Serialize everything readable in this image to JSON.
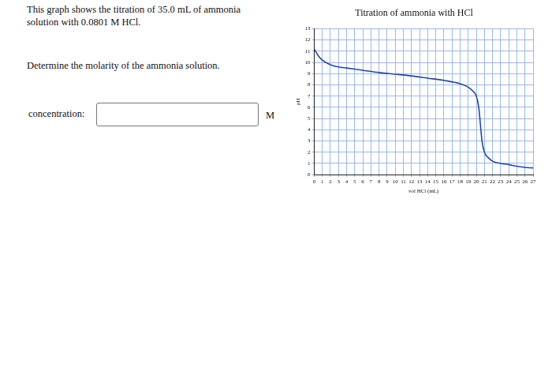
{
  "question": {
    "lines": [
      "This graph shows the titration of 35.0 mL of ammonia",
      "solution with 0.0801 M HCl."
    ],
    "prompt": "Determine the molarity of the ammonia solution.",
    "answer_label": "concentration:",
    "unit": "M"
  },
  "chart_data": {
    "type": "line",
    "title": "Titration of ammonia with HCl",
    "x_label": "vol HCl (mL)",
    "y_label": "pH",
    "x": [
      0,
      0.5,
      1,
      2,
      3,
      4,
      6,
      8,
      10,
      12,
      14,
      16,
      18,
      19,
      19.5,
      20,
      20.3,
      20.5,
      20.7,
      21,
      21.5,
      22,
      23,
      24,
      25,
      26,
      27
    ],
    "values": [
      11.2,
      10.6,
      10.2,
      9.8,
      9.6,
      9.5,
      9.3,
      9.1,
      8.95,
      8.8,
      8.6,
      8.4,
      8.1,
      7.8,
      7.5,
      7.0,
      6.0,
      4.5,
      3.0,
      2.0,
      1.5,
      1.2,
      1.0,
      0.9,
      0.75,
      0.65,
      0.6
    ],
    "color": "#2447a8",
    "xlim": [
      0,
      27
    ],
    "ylim": [
      0,
      13
    ],
    "xticks": [
      0,
      1,
      2,
      3,
      4,
      5,
      6,
      7,
      8,
      9,
      10,
      11,
      12,
      13,
      14,
      15,
      16,
      17,
      18,
      19,
      20,
      21,
      22,
      23,
      24,
      25,
      26,
      27
    ],
    "yticks": [
      0,
      1,
      2,
      3,
      4,
      5,
      6,
      7,
      8,
      9,
      10,
      11,
      12,
      13
    ],
    "grid": true
  }
}
